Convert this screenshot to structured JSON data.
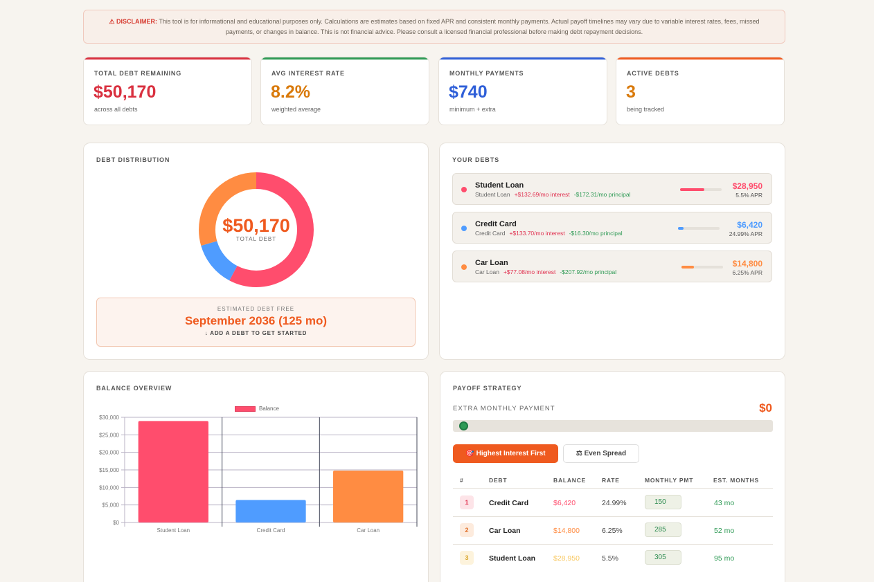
{
  "disclaimer": {
    "label": "⚠ DISCLAIMER:",
    "text": "This tool is for informational and educational purposes only. Calculations are estimates based on fixed APR and consistent monthly payments. Actual payoff timelines may vary due to variable interest rates, fees, missed payments, or changes in balance. This is not financial advice. Please consult a licensed financial professional before making debt repayment decisions."
  },
  "stats": [
    {
      "label": "TOTAL DEBT REMAINING",
      "value": "$50,170",
      "sub": "across all debts",
      "color": "#d9303f"
    },
    {
      "label": "AVG INTEREST RATE",
      "value": "8.2%",
      "sub": "weighted average",
      "color": "#d97a0b"
    },
    {
      "label": "MONTHLY PAYMENTS",
      "value": "$740",
      "sub": "minimum + extra",
      "color": "#2f5fd8"
    },
    {
      "label": "ACTIVE DEBTS",
      "value": "3",
      "sub": "being tracked",
      "color": "#d97a0b"
    }
  ],
  "distribution": {
    "title": "DEBT DISTRIBUTION",
    "total": "$50,170",
    "total_label": "TOTAL DEBT",
    "free_label": "ESTIMATED DEBT FREE",
    "free_date": "September 2036 (125 mo)",
    "hint": "↓ ADD A DEBT TO GET STARTED"
  },
  "your_debts": {
    "title": "YOUR DEBTS",
    "items": [
      {
        "name": "Student Loan",
        "type": "Student Loan",
        "interest": "+$132.69/mo interest",
        "principal": "-$172.31/mo principal",
        "amount": "$28,950",
        "apr": "5.5% APR",
        "color": "#ff4d6d",
        "progress": 0.58
      },
      {
        "name": "Credit Card",
        "type": "Credit Card",
        "interest": "+$133.70/mo interest",
        "principal": "-$16.30/mo principal",
        "amount": "$6,420",
        "apr": "24.99% APR",
        "color": "#4f9cff",
        "progress": 0.13
      },
      {
        "name": "Car Loan",
        "type": "Car Loan",
        "interest": "+$77.08/mo interest",
        "principal": "-$207.92/mo principal",
        "amount": "$14,800",
        "apr": "6.25% APR",
        "color": "#ff8c42",
        "progress": 0.3
      }
    ]
  },
  "balance_overview": {
    "title": "BALANCE OVERVIEW"
  },
  "chart_data": {
    "type": "bar",
    "categories": [
      "Student Loan",
      "Credit Card",
      "Car Loan"
    ],
    "series": [
      {
        "name": "Balance",
        "values": [
          28950,
          6420,
          14800
        ]
      }
    ],
    "colors": [
      "#ff4d6d",
      "#4f9cff",
      "#ff8c42"
    ],
    "ylim": [
      0,
      30000
    ],
    "yticks": [
      "$0",
      "$5,000",
      "$10,000",
      "$15,000",
      "$20,000",
      "$25,000",
      "$30,000"
    ],
    "grid": true,
    "legend": "top"
  },
  "strategy": {
    "title": "PAYOFF STRATEGY",
    "extra_label": "EXTRA MONTHLY PAYMENT",
    "extra_value": "$0",
    "slider_level": 0,
    "btn_primary": "🎯 Highest Interest First",
    "btn_secondary": "⚖ Even Spread",
    "headers": [
      "#",
      "DEBT",
      "BALANCE",
      "RATE",
      "MONTHLY PMT",
      "EST. MONTHS"
    ],
    "rows": [
      {
        "rank": "1",
        "debt": "Credit Card",
        "balance": "$6,420",
        "rate": "24.99%",
        "pmt": "150",
        "months": "43 mo",
        "bal_color": "#ff4d6d",
        "rank_bg": "#fde4e8",
        "rank_color": "#e0304f"
      },
      {
        "rank": "2",
        "debt": "Car Loan",
        "balance": "$14,800",
        "rate": "6.25%",
        "pmt": "285",
        "months": "52 mo",
        "bal_color": "#ff8c42",
        "rank_bg": "#fdebdd",
        "rank_color": "#e0702a"
      },
      {
        "rank": "3",
        "debt": "Student Loan",
        "balance": "$28,950",
        "rate": "5.5%",
        "pmt": "305",
        "months": "95 mo",
        "bal_color": "#f8c860",
        "rank_bg": "#fdf3dc",
        "rank_color": "#d9a52a"
      }
    ]
  }
}
